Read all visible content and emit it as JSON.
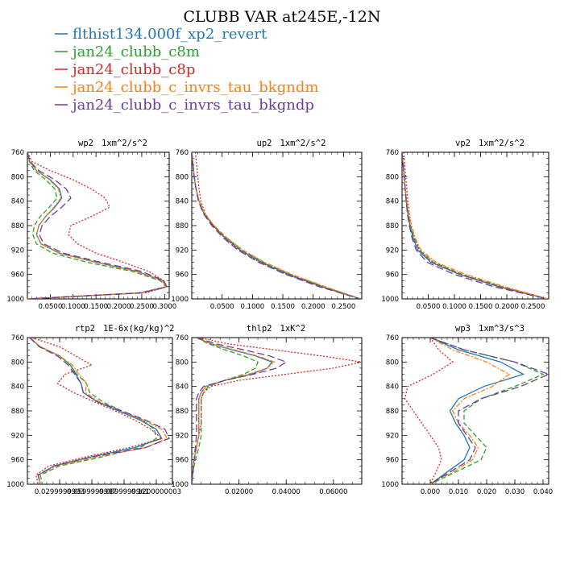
{
  "title": "CLUBB VAR at245E,-12N",
  "colors": {
    "flthist134.000f_xp2_revert": "#1f77b4",
    "jan24_clubb_c8m": "#2ca02c",
    "jan24_clubb_c8p": "#d62728",
    "jan24_clubb_c_invrs_tau_bkgndm": "#ff7f0e",
    "jan24_clubb_c_invrs_tau_bkgndp": "#6a3d9a"
  },
  "legend": {
    "placement": "top-left",
    "entries": [
      {
        "name": "flthist134.000f_xp2_revert",
        "color": "#1f77b4",
        "dash": "solid"
      },
      {
        "name": "jan24_clubb_c8m",
        "color": "#2ca02c",
        "dash": "dashed"
      },
      {
        "name": "jan24_clubb_c8p",
        "color": "#d62728",
        "dash": "dotted"
      },
      {
        "name": "jan24_clubb_c_invrs_tau_bkgndm",
        "color": "#ff7f0e",
        "dash": "dashdot"
      },
      {
        "name": "jan24_clubb_c_invrs_tau_bkgndp",
        "color": "#6a3d9a",
        "dash": "longdash"
      }
    ]
  },
  "chart_data": [
    {
      "type": "line",
      "title": "wp2",
      "units": "1xm^2/s^2",
      "xlim": [
        0.0,
        0.31
      ],
      "ylim": [
        760,
        1000
      ],
      "y_reversed": true,
      "xticks": [
        0.05,
        0.1,
        0.15,
        0.2,
        0.25,
        0.3
      ],
      "xtick_labels": [
        "0.0500",
        "0.1000",
        "0.1500",
        "0.2000",
        "0.2500",
        "0.3000"
      ],
      "yticks": [
        760,
        800,
        840,
        880,
        920,
        960,
        1000
      ],
      "ytick_labels": [
        "760",
        "800",
        "840",
        "880",
        "920",
        "960",
        "1000"
      ],
      "y": [
        760,
        775,
        790,
        805,
        820,
        835,
        850,
        865,
        880,
        895,
        910,
        925,
        940,
        955,
        970,
        980,
        990,
        1000
      ],
      "series": [
        {
          "name": "flthist134.000f_xp2_revert",
          "values": [
            0.0,
            0.005,
            0.02,
            0.05,
            0.07,
            0.075,
            0.06,
            0.04,
            0.025,
            0.02,
            0.03,
            0.07,
            0.15,
            0.24,
            0.295,
            0.305,
            0.25,
            0.0
          ]
        },
        {
          "name": "jan24_clubb_c8m",
          "values": [
            0.0,
            0.004,
            0.015,
            0.04,
            0.06,
            0.065,
            0.048,
            0.028,
            0.015,
            0.012,
            0.02,
            0.055,
            0.13,
            0.23,
            0.29,
            0.303,
            0.245,
            0.0
          ]
        },
        {
          "name": "jan24_clubb_c8p",
          "values": [
            0.0,
            0.01,
            0.05,
            0.1,
            0.14,
            0.17,
            0.18,
            0.14,
            0.095,
            0.09,
            0.11,
            0.15,
            0.21,
            0.265,
            0.298,
            0.305,
            0.26,
            0.0
          ]
        },
        {
          "name": "jan24_clubb_c_invrs_tau_bkgndm",
          "values": [
            0.0,
            0.005,
            0.02,
            0.048,
            0.068,
            0.073,
            0.058,
            0.04,
            0.025,
            0.02,
            0.03,
            0.068,
            0.148,
            0.238,
            0.294,
            0.304,
            0.25,
            0.0
          ]
        },
        {
          "name": "jan24_clubb_c_invrs_tau_bkgndp",
          "values": [
            0.0,
            0.006,
            0.025,
            0.06,
            0.085,
            0.095,
            0.075,
            0.05,
            0.032,
            0.026,
            0.036,
            0.078,
            0.16,
            0.25,
            0.298,
            0.305,
            0.25,
            0.0
          ]
        }
      ]
    },
    {
      "type": "line",
      "title": "up2",
      "units": "1xm^2/s^2",
      "xlim": [
        0.0,
        0.28
      ],
      "ylim": [
        760,
        1000
      ],
      "y_reversed": true,
      "xticks": [
        0.05,
        0.1,
        0.15,
        0.2,
        0.25
      ],
      "xtick_labels": [
        "0.0500",
        "0.1000",
        "0.1500",
        "0.2000",
        "0.2500"
      ],
      "yticks": [
        760,
        800,
        840,
        880,
        920,
        960,
        1000
      ],
      "ytick_labels": [
        "760",
        "800",
        "840",
        "880",
        "920",
        "960",
        "1000"
      ],
      "y": [
        760,
        780,
        800,
        820,
        840,
        860,
        880,
        900,
        920,
        940,
        960,
        980,
        1000
      ],
      "series": [
        {
          "name": "flthist134.000f_xp2_revert",
          "values": [
            0.0,
            0.002,
            0.004,
            0.007,
            0.012,
            0.02,
            0.035,
            0.055,
            0.08,
            0.115,
            0.16,
            0.215,
            0.278
          ]
        },
        {
          "name": "jan24_clubb_c8m",
          "values": [
            0.0,
            0.002,
            0.004,
            0.007,
            0.012,
            0.021,
            0.036,
            0.057,
            0.083,
            0.118,
            0.163,
            0.218,
            0.278
          ]
        },
        {
          "name": "jan24_clubb_c8p",
          "values": [
            0.006,
            0.008,
            0.01,
            0.012,
            0.015,
            0.022,
            0.035,
            0.054,
            0.078,
            0.112,
            0.157,
            0.213,
            0.278
          ]
        },
        {
          "name": "jan24_clubb_c_invrs_tau_bkgndm",
          "values": [
            0.0,
            0.002,
            0.004,
            0.007,
            0.012,
            0.021,
            0.037,
            0.058,
            0.084,
            0.12,
            0.165,
            0.22,
            0.278
          ]
        },
        {
          "name": "jan24_clubb_c_invrs_tau_bkgndp",
          "values": [
            0.0,
            0.002,
            0.004,
            0.007,
            0.011,
            0.019,
            0.033,
            0.052,
            0.076,
            0.11,
            0.155,
            0.21,
            0.278
          ]
        }
      ]
    },
    {
      "type": "line",
      "title": "vp2",
      "units": "1xm^2/s^2",
      "xlim": [
        0.0,
        0.28
      ],
      "ylim": [
        760,
        1000
      ],
      "y_reversed": true,
      "xticks": [
        0.05,
        0.1,
        0.15,
        0.2,
        0.25
      ],
      "xtick_labels": [
        "0.0500",
        "0.1000",
        "0.1500",
        "0.2000",
        "0.2500"
      ],
      "yticks": [
        760,
        800,
        840,
        880,
        920,
        960,
        1000
      ],
      "ytick_labels": [
        "760",
        "800",
        "840",
        "880",
        "920",
        "960",
        "1000"
      ],
      "y": [
        760,
        780,
        800,
        820,
        840,
        860,
        880,
        900,
        920,
        940,
        960,
        980,
        1000
      ],
      "series": [
        {
          "name": "flthist134.000f_xp2_revert",
          "values": [
            0.0,
            0.002,
            0.004,
            0.006,
            0.008,
            0.011,
            0.015,
            0.021,
            0.03,
            0.055,
            0.11,
            0.185,
            0.278
          ]
        },
        {
          "name": "jan24_clubb_c8m",
          "values": [
            0.0,
            0.002,
            0.004,
            0.006,
            0.008,
            0.012,
            0.016,
            0.023,
            0.033,
            0.06,
            0.115,
            0.19,
            0.278
          ]
        },
        {
          "name": "jan24_clubb_c8p",
          "values": [
            0.003,
            0.005,
            0.007,
            0.009,
            0.011,
            0.014,
            0.018,
            0.024,
            0.033,
            0.058,
            0.112,
            0.187,
            0.278
          ]
        },
        {
          "name": "jan24_clubb_c_invrs_tau_bkgndm",
          "values": [
            0.0,
            0.002,
            0.004,
            0.006,
            0.009,
            0.013,
            0.018,
            0.025,
            0.036,
            0.065,
            0.122,
            0.196,
            0.278
          ]
        },
        {
          "name": "jan24_clubb_c_invrs_tau_bkgndp",
          "values": [
            0.0,
            0.002,
            0.004,
            0.006,
            0.008,
            0.01,
            0.014,
            0.019,
            0.027,
            0.048,
            0.1,
            0.175,
            0.278
          ]
        }
      ]
    },
    {
      "type": "line",
      "title": "rtp2",
      "units": "1E-6x(kg/kg)^2",
      "xlim": [
        0.0,
        0.135
      ],
      "ylim": [
        760,
        1000
      ],
      "y_reversed": true,
      "xticks": [
        0.03,
        0.06,
        0.09,
        0.12
      ],
      "xtick_labels": [
        "0.0299999993",
        "0.0599999987",
        "0.0899999961",
        "0.1200000003"
      ],
      "yticks": [
        760,
        800,
        840,
        880,
        920,
        960,
        1000
      ],
      "ytick_labels": [
        "760",
        "800",
        "840",
        "880",
        "920",
        "960",
        "1000"
      ],
      "y": [
        760,
        775,
        790,
        805,
        820,
        835,
        850,
        865,
        880,
        895,
        910,
        925,
        940,
        955,
        970,
        985,
        1000
      ],
      "series": [
        {
          "name": "flthist134.000f_xp2_revert",
          "values": [
            0.002,
            0.012,
            0.03,
            0.04,
            0.045,
            0.05,
            0.052,
            0.065,
            0.085,
            0.105,
            0.12,
            0.125,
            0.1,
            0.06,
            0.025,
            0.01,
            0.012
          ]
        },
        {
          "name": "jan24_clubb_c8m",
          "values": [
            0.002,
            0.012,
            0.03,
            0.04,
            0.046,
            0.055,
            0.058,
            0.07,
            0.088,
            0.107,
            0.118,
            0.12,
            0.105,
            0.07,
            0.03,
            0.012,
            0.014
          ]
        },
        {
          "name": "jan24_clubb_c8p",
          "values": [
            0.004,
            0.03,
            0.045,
            0.06,
            0.035,
            0.028,
            0.043,
            0.062,
            0.082,
            0.1,
            0.115,
            0.125,
            0.095,
            0.055,
            0.02,
            0.008,
            0.01
          ]
        },
        {
          "name": "jan24_clubb_c_invrs_tau_bkgndm",
          "values": [
            0.002,
            0.012,
            0.03,
            0.042,
            0.048,
            0.055,
            0.054,
            0.067,
            0.087,
            0.108,
            0.125,
            0.13,
            0.11,
            0.065,
            0.027,
            0.01,
            0.012
          ]
        },
        {
          "name": "jan24_clubb_c_invrs_tau_bkgndp",
          "values": [
            0.002,
            0.011,
            0.028,
            0.038,
            0.044,
            0.05,
            0.052,
            0.065,
            0.088,
            0.11,
            0.128,
            0.132,
            0.11,
            0.06,
            0.025,
            0.01,
            0.012
          ]
        }
      ]
    },
    {
      "type": "line",
      "title": "thlp2",
      "units": "1xK^2",
      "xlim": [
        0.0,
        0.072
      ],
      "ylim": [
        760,
        1000
      ],
      "y_reversed": true,
      "xticks": [
        0.02,
        0.04,
        0.06
      ],
      "xtick_labels": [
        "0.02000",
        "0.04000",
        "0.06000"
      ],
      "yticks": [
        760,
        800,
        840,
        880,
        920,
        960,
        1000
      ],
      "ytick_labels": [
        "760",
        "800",
        "840",
        "880",
        "920",
        "960",
        "1000"
      ],
      "y": [
        760,
        770,
        780,
        790,
        800,
        810,
        820,
        830,
        840,
        850,
        860,
        870,
        880,
        900,
        920,
        940,
        960,
        980,
        1000
      ],
      "series": [
        {
          "name": "flthist134.000f_xp2_revert",
          "values": [
            0.002,
            0.008,
            0.017,
            0.027,
            0.034,
            0.032,
            0.025,
            0.014,
            0.006,
            0.004,
            0.003,
            0.003,
            0.003,
            0.003,
            0.003,
            0.002,
            0.001,
            0.0005,
            0.0
          ]
        },
        {
          "name": "jan24_clubb_c8m",
          "values": [
            0.002,
            0.007,
            0.014,
            0.022,
            0.028,
            0.027,
            0.022,
            0.014,
            0.007,
            0.005,
            0.004,
            0.004,
            0.004,
            0.004,
            0.004,
            0.003,
            0.0015,
            0.0005,
            0.0
          ]
        },
        {
          "name": "jan24_clubb_c8p",
          "values": [
            0.003,
            0.015,
            0.035,
            0.055,
            0.072,
            0.06,
            0.04,
            0.02,
            0.008,
            0.005,
            0.004,
            0.004,
            0.004,
            0.004,
            0.003,
            0.002,
            0.001,
            0.0005,
            0.0
          ]
        },
        {
          "name": "jan24_clubb_c_invrs_tau_bkgndm",
          "values": [
            0.002,
            0.008,
            0.018,
            0.028,
            0.035,
            0.032,
            0.024,
            0.014,
            0.006,
            0.004,
            0.003,
            0.003,
            0.003,
            0.003,
            0.003,
            0.002,
            0.001,
            0.0005,
            0.0
          ]
        },
        {
          "name": "jan24_clubb_c_invrs_tau_bkgndp",
          "values": [
            0.002,
            0.01,
            0.022,
            0.033,
            0.04,
            0.036,
            0.026,
            0.014,
            0.005,
            0.003,
            0.002,
            0.002,
            0.002,
            0.002,
            0.002,
            0.0015,
            0.001,
            0.0005,
            0.0
          ]
        }
      ]
    },
    {
      "type": "line",
      "title": "wp3",
      "units": "1xm^3/s^3",
      "xlim": [
        -0.01,
        0.042
      ],
      "ylim": [
        760,
        1000
      ],
      "y_reversed": true,
      "xticks": [
        0.0,
        0.01,
        0.02,
        0.03,
        0.04
      ],
      "xtick_labels": [
        "0.000",
        "0.010",
        "0.020",
        "0.030",
        "0.040"
      ],
      "yticks": [
        760,
        800,
        840,
        880,
        920,
        960,
        1000
      ],
      "ytick_labels": [
        "760",
        "800",
        "840",
        "880",
        "920",
        "960",
        "1000"
      ],
      "y": [
        760,
        780,
        800,
        820,
        840,
        860,
        880,
        900,
        920,
        940,
        960,
        980,
        1000
      ],
      "series": [
        {
          "name": "flthist134.000f_xp2_revert",
          "values": [
            0.0,
            0.01,
            0.025,
            0.033,
            0.019,
            0.01,
            0.007,
            0.009,
            0.012,
            0.014,
            0.012,
            0.006,
            0.0
          ]
        },
        {
          "name": "jan24_clubb_c8m",
          "values": [
            0.0,
            0.012,
            0.03,
            0.04,
            0.03,
            0.018,
            0.012,
            0.012,
            0.016,
            0.02,
            0.018,
            0.009,
            0.0
          ]
        },
        {
          "name": "jan24_clubb_c8p",
          "values": [
            0.0,
            0.003,
            0.008,
            0.001,
            -0.008,
            -0.009,
            -0.006,
            -0.003,
            0.0,
            0.003,
            0.004,
            0.002,
            0.0
          ]
        },
        {
          "name": "jan24_clubb_c_invrs_tau_bkgndm",
          "values": [
            0.0,
            0.008,
            0.02,
            0.028,
            0.022,
            0.012,
            0.008,
            0.01,
            0.014,
            0.017,
            0.015,
            0.008,
            0.0
          ]
        },
        {
          "name": "jan24_clubb_c_invrs_tau_bkgndp",
          "values": [
            0.0,
            0.012,
            0.03,
            0.042,
            0.032,
            0.018,
            0.01,
            0.01,
            0.013,
            0.016,
            0.014,
            0.007,
            0.0
          ]
        }
      ]
    }
  ]
}
